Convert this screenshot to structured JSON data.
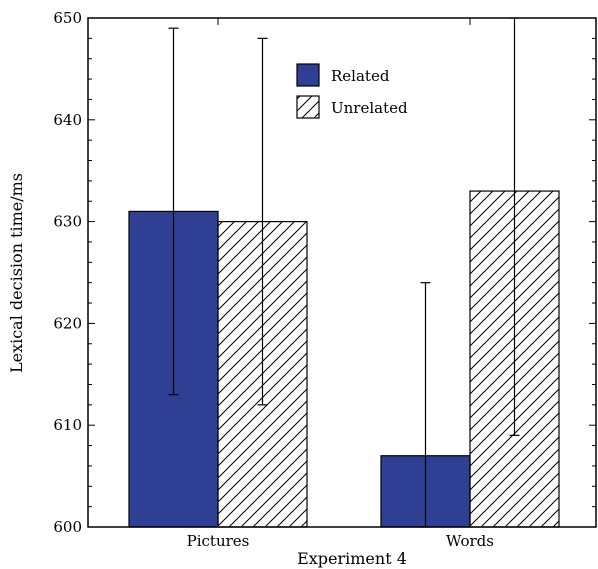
{
  "chart_data": {
    "type": "bar",
    "title": "",
    "xlabel": "Experiment 4",
    "ylabel": "Lexical decision time/ms",
    "categories": [
      "Pictures",
      "Words"
    ],
    "ylim": [
      600,
      650
    ],
    "yticks": [
      "600",
      "610",
      "620",
      "630",
      "640",
      "650"
    ],
    "series": [
      {
        "name": "Related",
        "values": [
          631,
          607
        ],
        "error_bars": [
          [
            613,
            649
          ],
          [
            600,
            624
          ]
        ],
        "color": "#2e3f94",
        "pattern": "solid"
      },
      {
        "name": "Unrelated",
        "values": [
          630,
          633
        ],
        "error_bars": [
          [
            612,
            648
          ],
          [
            609,
            650
          ]
        ],
        "color": "#ffffff",
        "pattern": "diagonal-hatch"
      }
    ],
    "legend_position": "top-center",
    "grid": false
  }
}
